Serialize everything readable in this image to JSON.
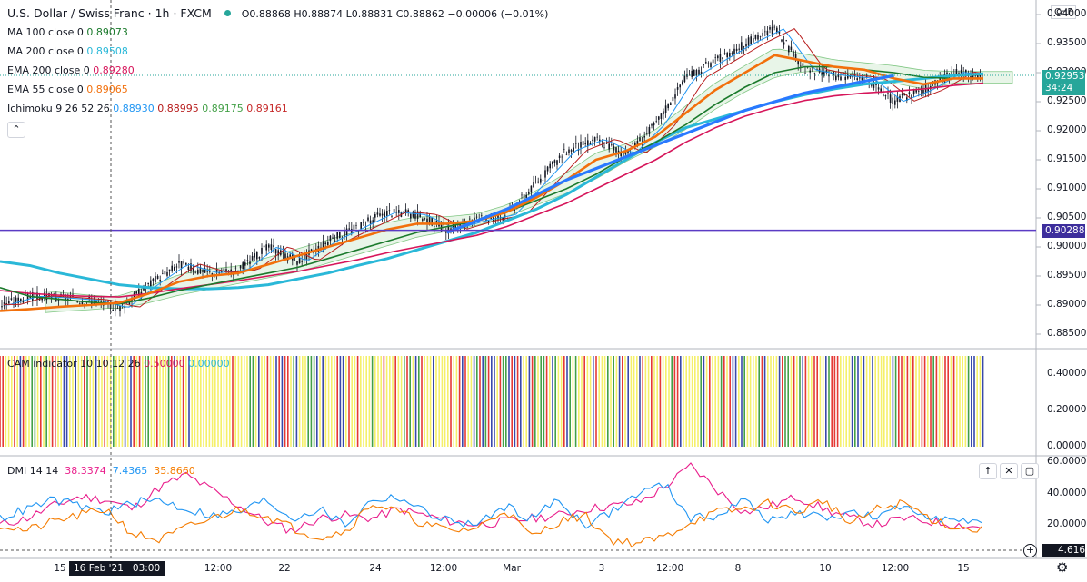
{
  "header": {
    "symbol": "U.S. Dollar / Swiss Franc · 1h · FXCM",
    "ohlc": "O0.88868 H0.88874 L0.88831 C0.88862 −0.00006 (−0.01%)"
  },
  "indicators": [
    {
      "label": "MA 100 close 0",
      "values": [
        {
          "v": "0.89073",
          "color": "#1b7a2c"
        }
      ]
    },
    {
      "label": "MA 200 close 0",
      "values": [
        {
          "v": "0.89508",
          "color": "#2ab8d8"
        }
      ]
    },
    {
      "label": "EMA 200 close 0",
      "values": [
        {
          "v": "0.89280",
          "color": "#d6155a"
        }
      ]
    },
    {
      "label": "EMA 55 close 0",
      "values": [
        {
          "v": "0.89065",
          "color": "#f2700c"
        }
      ]
    },
    {
      "label": "Ichimoku 9 26 52 26",
      "values": [
        {
          "v": "0.88930",
          "color": "#2196f3"
        },
        {
          "v": "0.88995",
          "color": "#b71c1c"
        },
        {
          "v": "0.89175",
          "color": "#43a047"
        },
        {
          "v": "0.89161",
          "color": "#c62828"
        }
      ]
    }
  ],
  "cam_legend": {
    "label": "CAM indicator 10 10 12 26",
    "v1": "0.50000",
    "v2": "0.00000",
    "c1": "#d6155a",
    "c2": "#2ab8d8"
  },
  "dmi_legend": {
    "label": "DMI 14 14",
    "v1": "38.3374",
    "v2": "7.4365",
    "v3": "35.8660",
    "c1": "#e91e8c",
    "c2": "#2196f3",
    "c3": "#f57c00"
  },
  "price_axis": {
    "currency": "CHF",
    "ticks": [
      "0.94000",
      "0.93500",
      "0.93000",
      "0.92500",
      "0.92000",
      "0.91500",
      "0.91000",
      "0.90500",
      "0.90000",
      "0.89500",
      "0.89000",
      "0.88500"
    ],
    "last_price": "0.92953",
    "countdown": "34:24",
    "hline_price": "0.90288"
  },
  "cam_axis": {
    "ticks": [
      "0.40000",
      "0.20000",
      "0.00000"
    ]
  },
  "dmi_axis": {
    "ticks": [
      "60.0000",
      "40.0000",
      "20.0000"
    ],
    "last": "4.6161"
  },
  "time_axis": {
    "labels": [
      "15",
      "12:00",
      "22",
      "24",
      "12:00",
      "Mar",
      "3",
      "12:00",
      "8",
      "10",
      "12:00",
      "15"
    ],
    "crosshair_label": "16 Feb '21   03:00"
  },
  "icons": {
    "up": "arrow-up-icon",
    "close": "close-icon",
    "maximize": "maximize-icon",
    "settings": "gear-icon",
    "add": "plus-circle-icon"
  },
  "chart_data": {
    "type": "line",
    "title": "U.S. Dollar / Swiss Franc · 1h · FXCM",
    "price_range": [
      0.8825,
      0.9425
    ],
    "horizontal_line": 0.90288,
    "series": [
      {
        "name": "Price",
        "values": [
          0.89,
          0.8915,
          0.8912,
          0.8908,
          0.8895,
          0.8935,
          0.897,
          0.8955,
          0.896,
          0.9,
          0.8975,
          0.901,
          0.9035,
          0.906,
          0.9055,
          0.903,
          0.9045,
          0.9055,
          0.911,
          0.9165,
          0.9185,
          0.916,
          0.921,
          0.929,
          0.932,
          0.935,
          0.9375,
          0.9305,
          0.9295,
          0.929,
          0.925,
          0.927,
          0.93,
          0.9295
        ]
      },
      {
        "name": "EMA 55",
        "values": [
          0.889,
          0.8893,
          0.8897,
          0.89,
          0.8904,
          0.892,
          0.894,
          0.895,
          0.8955,
          0.897,
          0.8985,
          0.9,
          0.9015,
          0.903,
          0.904,
          0.904,
          0.9045,
          0.906,
          0.9085,
          0.9115,
          0.915,
          0.9165,
          0.919,
          0.923,
          0.927,
          0.93,
          0.933,
          0.932,
          0.931,
          0.9305,
          0.929,
          0.928,
          0.929,
          0.929
        ]
      },
      {
        "name": "MA 100",
        "values": [
          0.893,
          0.8915,
          0.891,
          0.8905,
          0.8902,
          0.8912,
          0.8925,
          0.8935,
          0.8945,
          0.8955,
          0.8965,
          0.898,
          0.8995,
          0.901,
          0.9025,
          0.9035,
          0.9045,
          0.906,
          0.908,
          0.91,
          0.9125,
          0.9155,
          0.918,
          0.921,
          0.9245,
          0.9275,
          0.93,
          0.931,
          0.931,
          0.9305,
          0.93,
          0.9292,
          0.929,
          0.929
        ]
      },
      {
        "name": "EMA 200",
        "values": [
          0.8925,
          0.892,
          0.8917,
          0.8915,
          0.8914,
          0.892,
          0.8928,
          0.8935,
          0.8942,
          0.895,
          0.8958,
          0.8968,
          0.8978,
          0.899,
          0.9,
          0.901,
          0.902,
          0.9035,
          0.9055,
          0.9075,
          0.91,
          0.9125,
          0.915,
          0.918,
          0.9205,
          0.9225,
          0.924,
          0.9252,
          0.926,
          0.9265,
          0.9268,
          0.9272,
          0.9278,
          0.9282
        ]
      },
      {
        "name": "MA 200",
        "values": [
          0.8975,
          0.8968,
          0.8955,
          0.8945,
          0.8935,
          0.893,
          0.8928,
          0.8928,
          0.893,
          0.8935,
          0.8945,
          0.8955,
          0.8968,
          0.898,
          0.8995,
          0.901,
          0.9025,
          0.9045,
          0.9065,
          0.909,
          0.912,
          0.915,
          0.918,
          0.9205,
          0.922,
          0.9235,
          0.925,
          0.9262,
          0.9272,
          0.928,
          0.9285,
          0.929,
          0.9295,
          0.9298
        ]
      },
      {
        "name": "Trendline",
        "values": [
          null,
          null,
          null,
          null,
          null,
          null,
          null,
          null,
          null,
          null,
          null,
          null,
          null,
          null,
          null,
          0.9025,
          0.9045,
          0.9065,
          0.909,
          0.9115,
          0.9135,
          0.9155,
          0.9175,
          0.9195,
          0.9215,
          0.9235,
          0.925,
          0.9265,
          0.9275,
          0.9285,
          0.9295,
          null,
          null,
          null
        ]
      }
    ],
    "cam_values": [
      0.5,
      0.0
    ],
    "dmi": {
      "range": [
        0,
        62
      ],
      "series": [
        {
          "name": "+DI",
          "values": [
            20,
            24,
            32,
            38,
            36,
            30,
            44,
            52,
            42,
            32,
            22,
            16,
            24,
            26,
            24,
            30,
            26,
            22,
            20,
            22,
            24,
            26,
            30,
            32,
            34,
            44,
            58,
            42,
            28,
            32,
            38,
            30,
            24,
            20,
            24,
            22,
            20,
            18
          ]
        },
        {
          "name": "-DI",
          "values": [
            24,
            30,
            36,
            32,
            28,
            34,
            36,
            30,
            26,
            28,
            36,
            24,
            30,
            20,
            36,
            38,
            28,
            22,
            20,
            32,
            24,
            36,
            20,
            28,
            40,
            46,
            24,
            26,
            36,
            22,
            28,
            24,
            28,
            24,
            32,
            26,
            22,
            20
          ]
        },
        {
          "name": "ADX",
          "values": [
            20,
            16,
            22,
            26,
            30,
            14,
            10,
            18,
            24,
            30,
            26,
            18,
            12,
            16,
            34,
            28,
            20,
            16,
            18,
            30,
            12,
            22,
            26,
            10,
            8,
            12,
            22,
            28,
            30,
            34,
            28,
            36,
            20,
            30,
            34,
            24,
            18,
            16
          ]
        }
      ]
    }
  }
}
